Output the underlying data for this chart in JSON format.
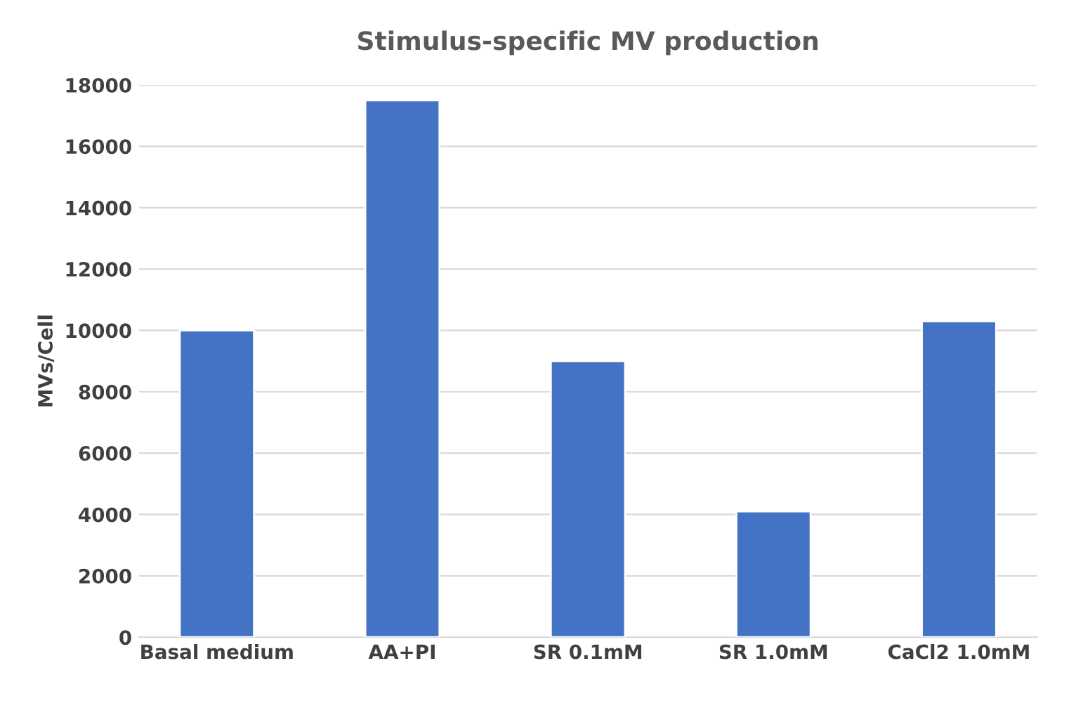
{
  "chart_data": {
    "type": "bar",
    "title": "Stimulus-specific MV production",
    "ylabel": "MVs/Cell",
    "categories": [
      "Basal medium",
      "AA+PI",
      "SR 0.1mM",
      "SR 1.0mM",
      "CaCl2 1.0mM"
    ],
    "values": [
      10000,
      17500,
      9000,
      4100,
      10300
    ],
    "color": "#4472c4",
    "ylim": [
      0,
      18000
    ],
    "yticks": [
      0,
      2000,
      4000,
      6000,
      8000,
      10000,
      12000,
      14000,
      16000,
      18000
    ],
    "grid": "y",
    "legend": false
  }
}
